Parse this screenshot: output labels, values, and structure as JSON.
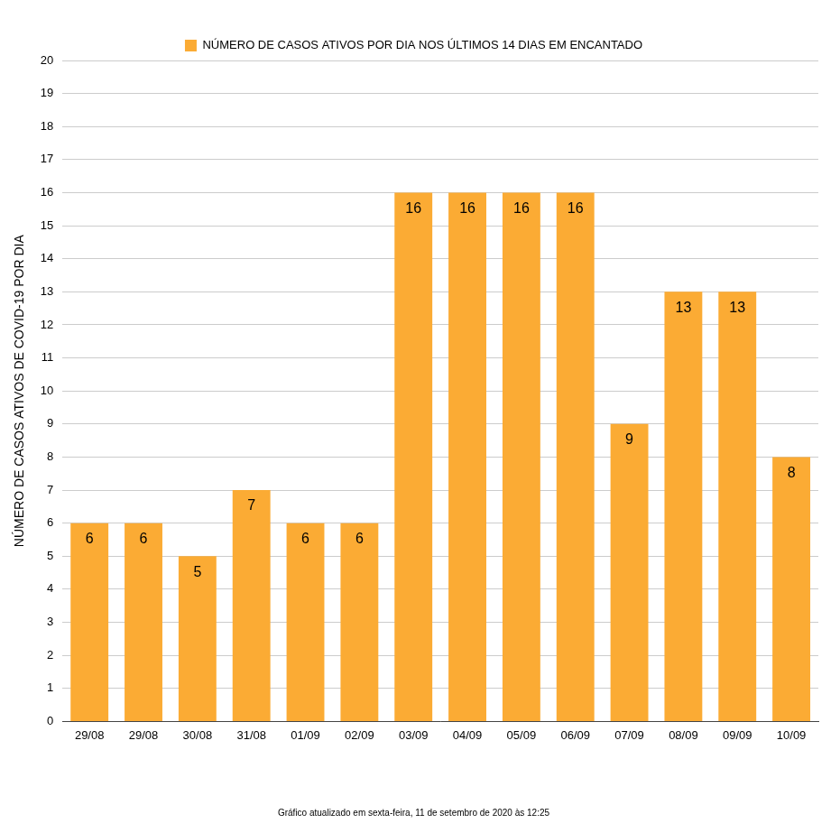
{
  "chart_data": {
    "type": "bar",
    "categories": [
      "29/08",
      "29/08",
      "30/08",
      "31/08",
      "01/09",
      "02/09",
      "03/09",
      "04/09",
      "05/09",
      "06/09",
      "07/09",
      "08/09",
      "09/09",
      "10/09"
    ],
    "series": [
      {
        "name": "NÚMERO DE CASOS ATIVOS POR DIA NOS ÚLTIMOS 14 DIAS EM ENCANTADO",
        "color": "#fbab34",
        "values": [
          6,
          6,
          5,
          7,
          6,
          6,
          16,
          16,
          16,
          16,
          9,
          13,
          13,
          8
        ]
      }
    ],
    "y_label": "NÚMERO DE CASOS ATIVOS DE COVID-19 POR DIA",
    "annotations": [
      "Gráfico atualizado em sexta-feira, 11 de setembro de 2020 às 12:25"
    ],
    "ylim": [
      0,
      20
    ],
    "yticks": [
      0,
      1,
      2,
      3,
      4,
      5,
      6,
      7,
      8,
      9,
      10,
      11,
      12,
      13,
      14,
      15,
      16,
      17,
      18,
      19,
      20
    ],
    "grid": true,
    "legend": "top",
    "data_labels": true
  }
}
